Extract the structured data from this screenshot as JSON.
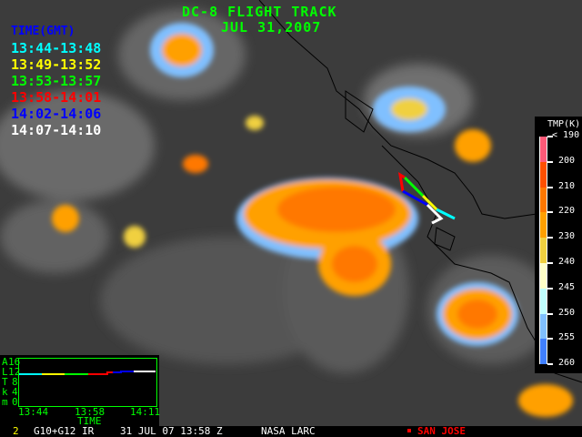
{
  "title": "DC-8 FLIGHT TRACK",
  "date": "JUL 31,2007",
  "legend": {
    "header": "TIME(GMT)",
    "header_color": "#0000ff",
    "entries": [
      {
        "label": "13:44-13:48",
        "color": "#00ffff"
      },
      {
        "label": "13:49-13:52",
        "color": "#ffff00"
      },
      {
        "label": "13:53-13:57",
        "color": "#00ff00"
      },
      {
        "label": "13:58-14:01",
        "color": "#ff0000"
      },
      {
        "label": "14:02-14:06",
        "color": "#0000ff"
      },
      {
        "label": "14:07-14:10",
        "color": "#ffffff"
      }
    ]
  },
  "colorbar": {
    "title": "TMP(K)",
    "labels": [
      "< 190",
      "200",
      "210",
      "220",
      "230",
      "240",
      "245",
      "250",
      "255",
      "260"
    ],
    "colors": [
      "#ff5a78",
      "#ff5000",
      "#ff7800",
      "#ffa000",
      "#f0d040",
      "#ffffc8",
      "#c0ffff",
      "#80c0ff",
      "#4080ff"
    ]
  },
  "altitude_plot": {
    "ylabel": [
      "A",
      "L",
      "T",
      "k",
      "m"
    ],
    "yticks": [
      "16",
      "12",
      "8",
      "4",
      "0"
    ],
    "xticks": [
      "13:44",
      "13:58",
      "14:11"
    ],
    "xlabel": "TIME",
    "altitude_km": 10.5
  },
  "footer": {
    "frame": "2",
    "satellite": "G10+G12 IR",
    "datetime": "31 JUL 07 13:58 Z",
    "source": "NASA LARC",
    "location": "SAN JOSE",
    "location_color": "#ff0000"
  }
}
